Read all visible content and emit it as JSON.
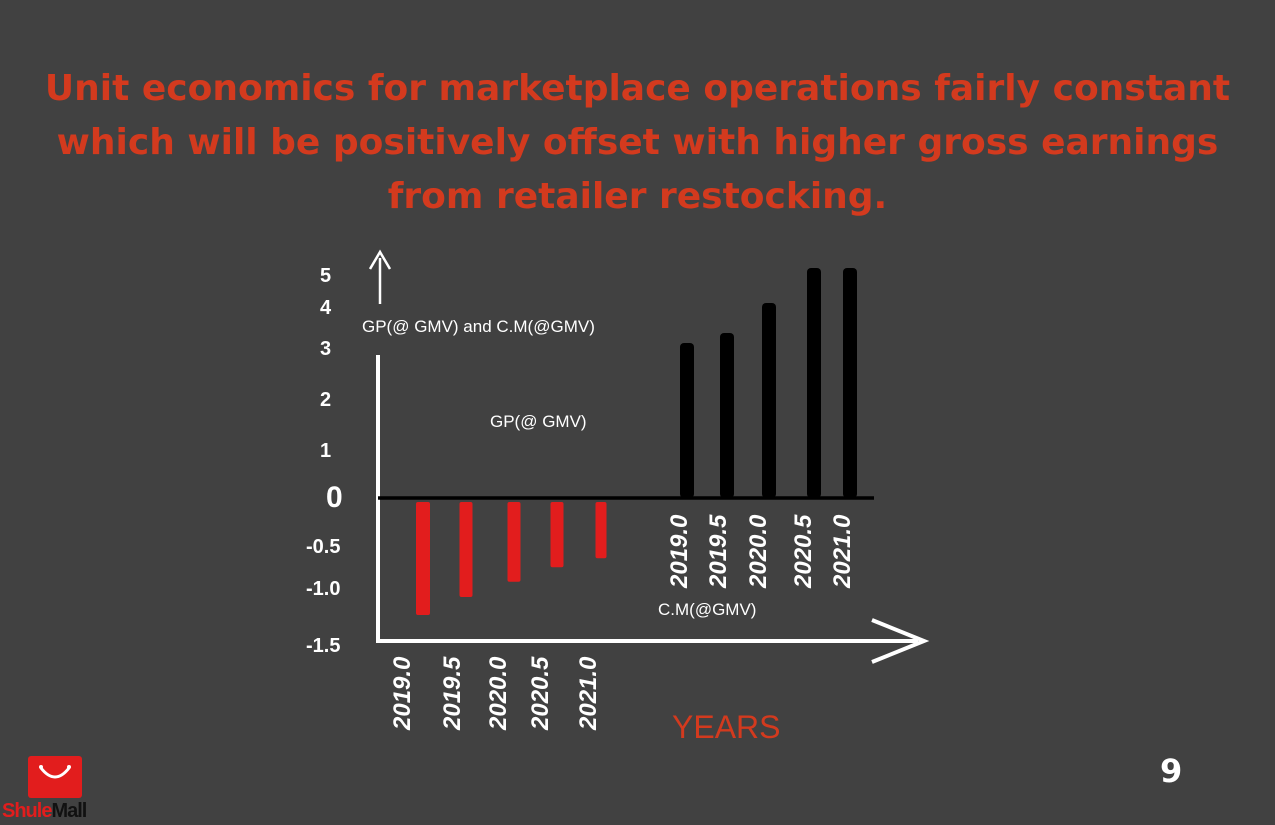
{
  "slide": {
    "headline_lines": [
      "Unit economics for marketplace operations fairly constant",
      "which will be positively offset with higher gross earnings",
      "from retailer restocking."
    ],
    "page_number": "9"
  },
  "logo": {
    "part1": "Shule",
    "part2": "Mall",
    "icon": "shopping-bag-icon"
  },
  "colors": {
    "background": "#414141",
    "accent": "#d33a1e",
    "negative_bar": "#e21d1d",
    "positive_bar": "#000000",
    "axis": "#ffffff"
  },
  "chart_data": {
    "type": "bar",
    "y_ticks": [
      "5",
      "4",
      "3",
      "2",
      "1",
      "0",
      "-0.5",
      "-1.0",
      "-1.5"
    ],
    "ylabel": "GP(@ GMV) and  C.M(@GMV)",
    "xlabel": "YEARS",
    "series": [
      {
        "name": "C.M(@GMV)",
        "categories": [
          "2019.0",
          "2019.5",
          "2020.0",
          "2020.5",
          "2021.0"
        ],
        "values": [
          -1.3,
          -1.1,
          -0.93,
          -0.77,
          -0.67
        ],
        "color": "#e21d1d"
      },
      {
        "name": "GP(@ GMV)",
        "categories": [
          "2019.0",
          "2019.5",
          "2020.0",
          "2020.5",
          "2021.0"
        ],
        "values": [
          3.1,
          3.3,
          3.9,
          4.6,
          4.6
        ],
        "color": "#000000"
      }
    ],
    "grid": false,
    "legend": "none"
  }
}
